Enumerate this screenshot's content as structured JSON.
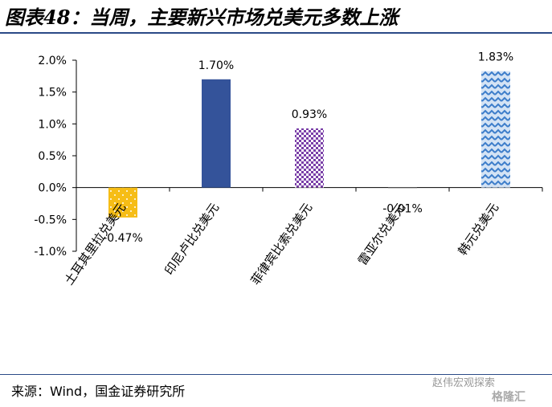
{
  "title": "图表48：当周，主要新兴市场兑美元多数上涨",
  "source": "来源：Wind，国金证券研究所",
  "watermark": "赵伟宏观探索",
  "watermark2": "格隆汇",
  "chart_data": {
    "type": "bar",
    "categories": [
      "土耳其里拉兑美元",
      "印尼卢比兑美元",
      "菲律宾比索兑美元",
      "雷亚尔兑美元",
      "韩元兑美元"
    ],
    "values": [
      -0.47,
      1.7,
      0.93,
      -0.01,
      1.83
    ],
    "data_labels": [
      "-0.47%",
      "1.70%",
      "0.93%",
      "-0.01%",
      "1.83%"
    ],
    "ylim": [
      -1.0,
      2.0
    ],
    "yticks": [
      2.0,
      1.5,
      1.0,
      0.5,
      0.0,
      -0.5,
      -1.0
    ],
    "ytick_labels": [
      "2.0%",
      "1.5%",
      "1.0%",
      "0.5%",
      "0.0%",
      "-0.5%",
      "-1.0%"
    ],
    "grid": false,
    "bar_colors": [
      "#f6bd16",
      "#34539a",
      "#7a3fa8",
      "#8a8a8a",
      "#3d7dca"
    ],
    "bar_fills": [
      "dots",
      "solid",
      "checker",
      "solid",
      "zigzag"
    ]
  }
}
